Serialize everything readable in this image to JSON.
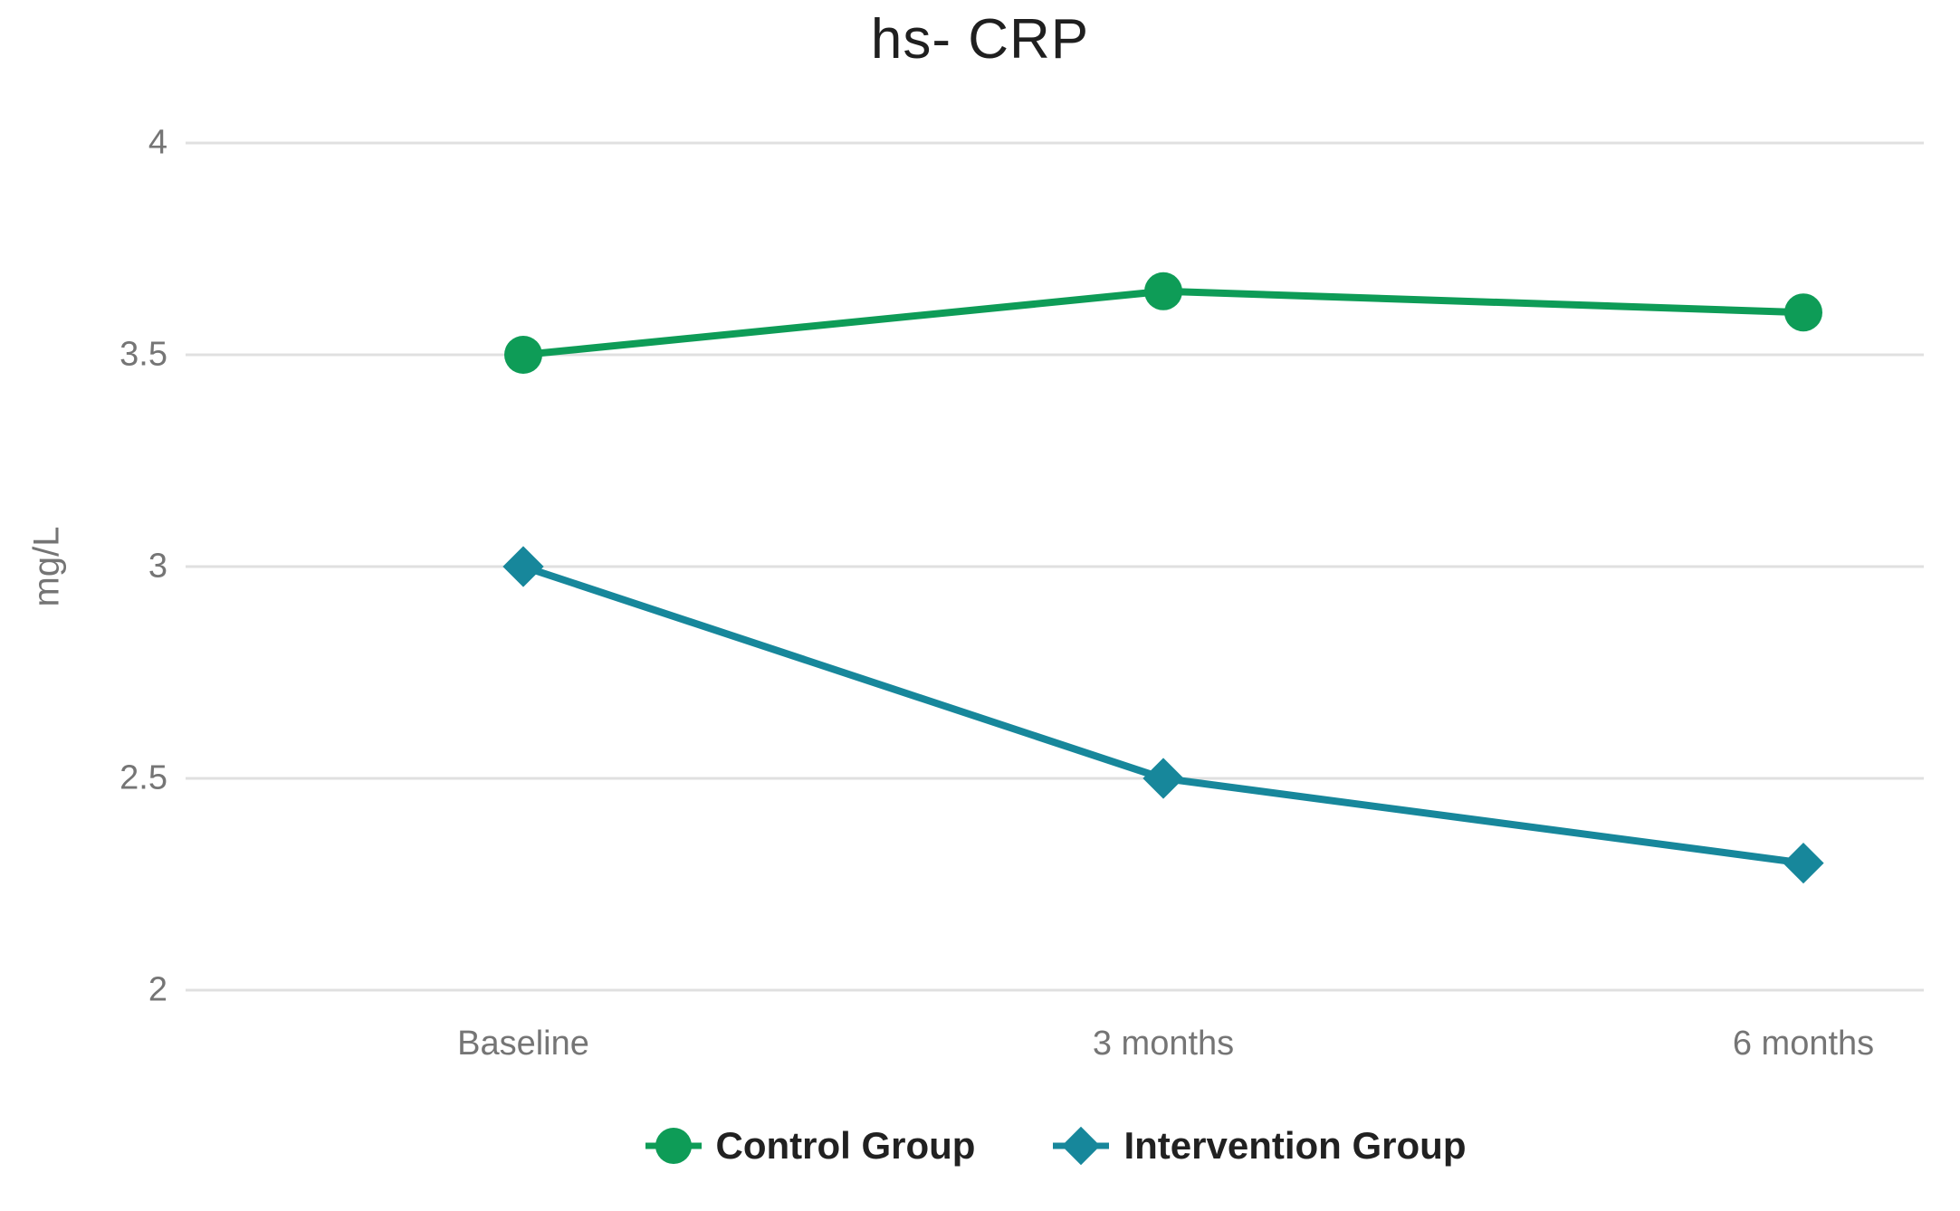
{
  "colors": {
    "background": "#ffffff",
    "gridline": "#e0e0e0",
    "axis_text": "#757575",
    "title_text": "#1f1f1f",
    "legend_text": "#212121",
    "control_green": "#0e9c57",
    "intervention_teal": "#17879b"
  },
  "chart_data": {
    "type": "line",
    "title": "hs- CRP",
    "xlabel": "",
    "ylabel": "mg/L",
    "categories": [
      "Baseline",
      "3 months",
      "6 months"
    ],
    "series": [
      {
        "name": "Control Group",
        "marker": "circle",
        "color": "#0e9c57",
        "values": [
          3.5,
          3.65,
          3.6
        ]
      },
      {
        "name": "Intervention Group",
        "marker": "diamond",
        "color": "#17879b",
        "values": [
          3.0,
          2.5,
          2.3
        ]
      }
    ],
    "ylim": [
      2,
      4
    ],
    "yticks": [
      4,
      3.5,
      3,
      2.5,
      2
    ],
    "ytick_labels": [
      "4",
      "3.5",
      "3",
      "2.5",
      "2"
    ],
    "grid": "horizontal",
    "legend_position": "bottom"
  }
}
